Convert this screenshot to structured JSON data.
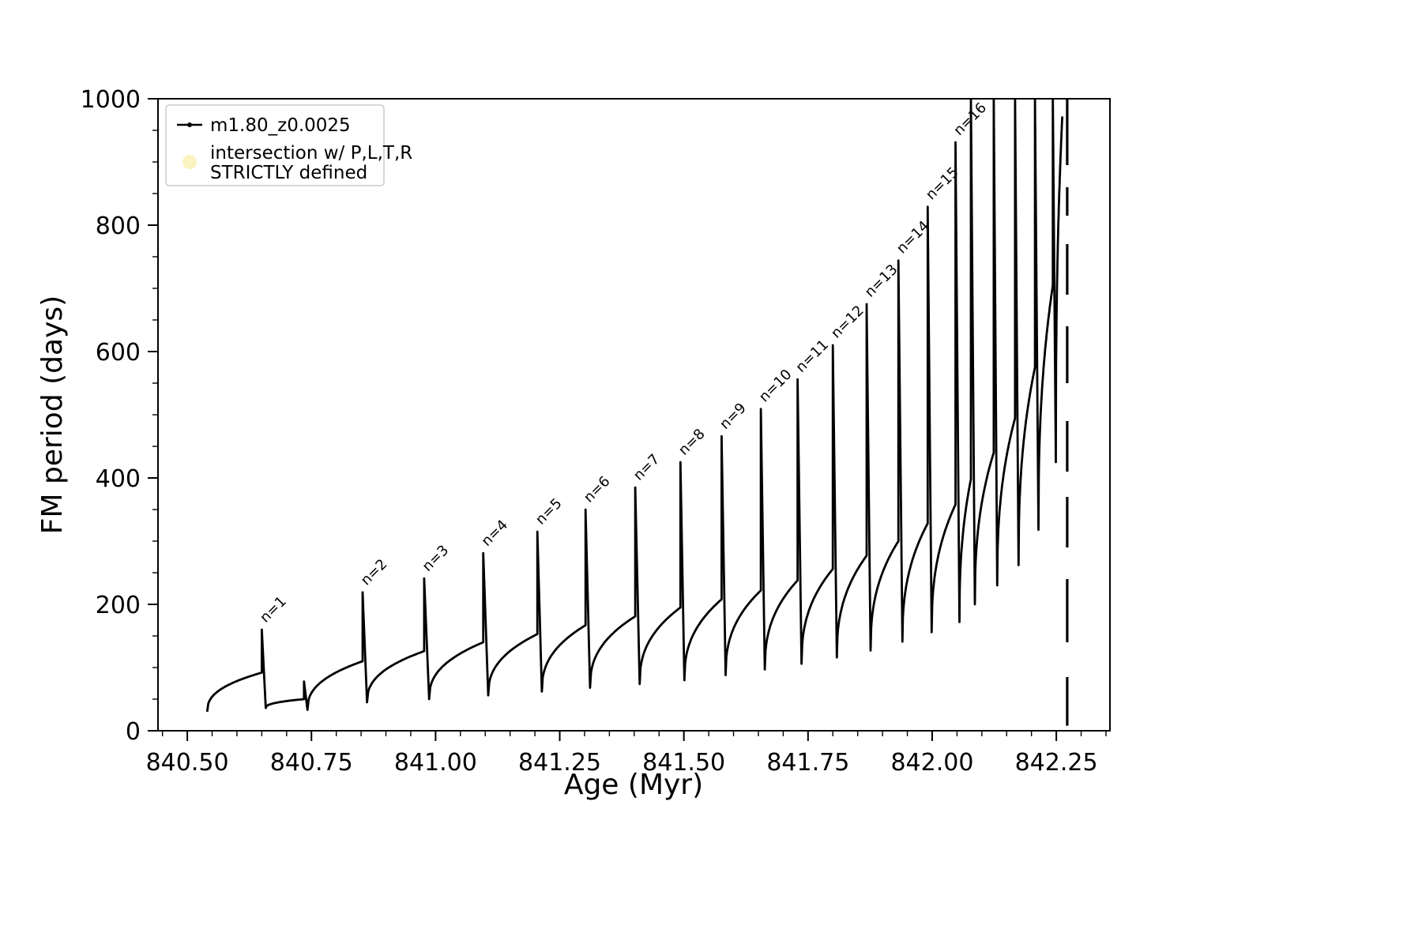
{
  "chart_data": {
    "type": "line",
    "title": "",
    "xlabel": "Age (Myr)",
    "ylabel": "FM period (days)",
    "xlim": [
      840.441,
      842.358
    ],
    "ylim": [
      0,
      1000
    ],
    "xticks": [
      840.5,
      840.75,
      841.0,
      841.25,
      841.5,
      841.75,
      842.0,
      842.25
    ],
    "xtick_labels": [
      "840.50",
      "840.75",
      "841.00",
      "841.25",
      "841.50",
      "841.75",
      "842.00",
      "842.25"
    ],
    "yticks": [
      0,
      200,
      400,
      600,
      800,
      1000
    ],
    "ytick_labels": [
      "0",
      "200",
      "400",
      "600",
      "800",
      "1000"
    ],
    "minor_x_step": 0.05,
    "minor_y_step": 50,
    "grid": false,
    "line_color": "#000000",
    "legend": {
      "position": "upper-left",
      "entries": [
        {
          "label": "m1.80_z0.0025",
          "marker": "line-dot",
          "color": "#000000"
        },
        {
          "lines": [
            "intersection w/ P,L,T,R",
            "STRICTLY defined"
          ],
          "marker": "circle",
          "color": "#faf3c0"
        }
      ]
    },
    "series": {
      "name": "m1.80_z0.0025",
      "shape": "sawtooth-cycles: each cycle rises concavely from y0 to plateau yp between x0..x1, then spikes vertically to peak at x1, then drops to next cycle start",
      "cycles": [
        {
          "x0": 840.54,
          "x1": 840.65,
          "y0": 30,
          "yp": 92,
          "peak": 160,
          "label": "n=1"
        },
        {
          "x0": 840.658,
          "x1": 840.735,
          "y0": 36,
          "yp": 50,
          "peak": 78
        },
        {
          "x0": 840.742,
          "x1": 840.853,
          "y0": 33,
          "yp": 110,
          "peak": 219,
          "label": "n=2"
        },
        {
          "x0": 840.862,
          "x1": 840.977,
          "y0": 45,
          "yp": 126,
          "peak": 241,
          "label": "n=3"
        },
        {
          "x0": 840.987,
          "x1": 841.096,
          "y0": 50,
          "yp": 140,
          "peak": 281,
          "label": "n=4"
        },
        {
          "x0": 841.106,
          "x1": 841.205,
          "y0": 56,
          "yp": 153,
          "peak": 315,
          "label": "n=5"
        },
        {
          "x0": 841.214,
          "x1": 841.302,
          "y0": 62,
          "yp": 167,
          "peak": 350,
          "label": "n=6"
        },
        {
          "x0": 841.311,
          "x1": 841.402,
          "y0": 68,
          "yp": 181,
          "peak": 385,
          "label": "n=7"
        },
        {
          "x0": 841.411,
          "x1": 841.493,
          "y0": 74,
          "yp": 195,
          "peak": 425,
          "label": "n=8"
        },
        {
          "x0": 841.501,
          "x1": 841.576,
          "y0": 80,
          "yp": 208,
          "peak": 466,
          "label": "n=9"
        },
        {
          "x0": 841.584,
          "x1": 841.655,
          "y0": 88,
          "yp": 222,
          "peak": 509,
          "label": "n=10"
        },
        {
          "x0": 841.663,
          "x1": 841.729,
          "y0": 97,
          "yp": 238,
          "peak": 556,
          "label": "n=11"
        },
        {
          "x0": 841.737,
          "x1": 841.8,
          "y0": 106,
          "yp": 256,
          "peak": 610,
          "label": "n=12"
        },
        {
          "x0": 841.808,
          "x1": 841.868,
          "y0": 116,
          "yp": 277,
          "peak": 675,
          "label": "n=13"
        },
        {
          "x0": 841.876,
          "x1": 841.932,
          "y0": 127,
          "yp": 300,
          "peak": 744,
          "label": "n=14"
        },
        {
          "x0": 841.94,
          "x1": 841.991,
          "y0": 141,
          "yp": 328,
          "peak": 829,
          "label": "n=15"
        },
        {
          "x0": 841.999,
          "x1": 842.047,
          "y0": 156,
          "yp": 358,
          "peak": 931,
          "label": "n=16"
        },
        {
          "x0": 842.055,
          "x1": 842.078,
          "y0": 172,
          "yp": 398,
          "peak": 1000
        },
        {
          "x0": 842.086,
          "x1": 842.124,
          "y0": 200,
          "yp": 440,
          "peak": 1000
        },
        {
          "x0": 842.131,
          "x1": 842.167,
          "y0": 230,
          "yp": 495,
          "peak": 1000
        },
        {
          "x0": 842.174,
          "x1": 842.207,
          "y0": 262,
          "yp": 575,
          "peak": 1000
        },
        {
          "x0": 842.214,
          "x1": 842.243,
          "y0": 318,
          "yp": 705,
          "peak": 1000
        },
        {
          "x0": 842.249,
          "x1": 842.262,
          "y0": 425,
          "yp": 972,
          "peak": 972
        }
      ],
      "final_drop": {
        "x": 842.272,
        "segments": [
          [
            1000,
            895
          ],
          [
            860,
            815
          ],
          [
            770,
            690
          ],
          [
            640,
            550
          ],
          [
            490,
            410
          ],
          [
            370,
            290
          ],
          [
            240,
            140
          ],
          [
            85,
            8
          ]
        ]
      }
    }
  }
}
